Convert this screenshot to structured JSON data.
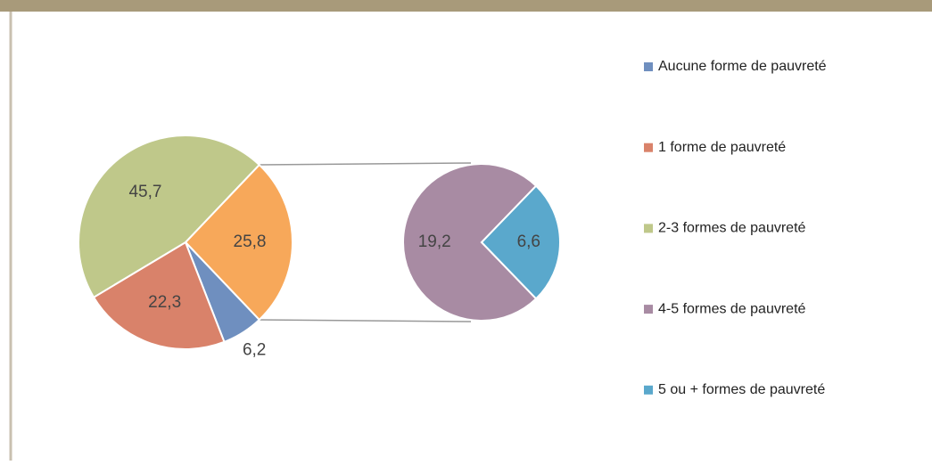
{
  "chart_data": {
    "type": "pie-of-pie",
    "categories": [
      "Aucune forme de pauvreté",
      "1 forme de pauvreté",
      "2-3 formes de pauvreté",
      "4-5 formes de pauvreté",
      "5 ou + formes de pauvreté"
    ],
    "values": [
      6.2,
      22.3,
      45.7,
      19.2,
      6.6
    ],
    "value_labels": [
      "6,2",
      "22,3",
      "45,7",
      "19,2",
      "6,6"
    ],
    "colors": [
      "#6f8fbf",
      "#d9826a",
      "#bfc88a",
      "#a88ba3",
      "#5aa8cc"
    ],
    "secondary_count": 2,
    "other_value": 25.8,
    "other_label": "25,8",
    "other_color": "#f7a85a",
    "legend": "right"
  }
}
